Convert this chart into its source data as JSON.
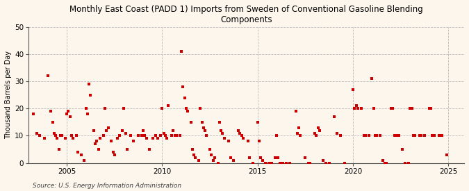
{
  "title": "Monthly East Coast (PADD 1) Imports from Sweden of Conventional Gasoline Blending\nComponents",
  "ylabel": "Thousand Barrels per Day",
  "source": "Source: U.S. Energy Information Administration",
  "background_color": "#fdf6ec",
  "plot_bg_color": "#fdf6ec",
  "marker_color": "#cc0000",
  "grid_color": "#bbbbbb",
  "xlim": [
    2003.0,
    2025.83
  ],
  "ylim": [
    0,
    50
  ],
  "yticks": [
    0,
    10,
    20,
    30,
    40,
    50
  ],
  "xticks": [
    2005,
    2010,
    2015,
    2020,
    2025
  ],
  "data_points": [
    [
      2003.25,
      18
    ],
    [
      2003.42,
      11
    ],
    [
      2003.58,
      10
    ],
    [
      2003.83,
      9
    ],
    [
      2004.0,
      32
    ],
    [
      2004.17,
      19
    ],
    [
      2004.25,
      15
    ],
    [
      2004.33,
      11
    ],
    [
      2004.42,
      10
    ],
    [
      2004.5,
      9
    ],
    [
      2004.58,
      5
    ],
    [
      2004.67,
      10
    ],
    [
      2004.75,
      10
    ],
    [
      2004.92,
      9
    ],
    [
      2005.0,
      18
    ],
    [
      2005.08,
      19
    ],
    [
      2005.17,
      17
    ],
    [
      2005.25,
      10
    ],
    [
      2005.33,
      9
    ],
    [
      2005.5,
      10
    ],
    [
      2005.58,
      4
    ],
    [
      2005.75,
      3
    ],
    [
      2005.92,
      1
    ],
    [
      2006.0,
      20
    ],
    [
      2006.08,
      18
    ],
    [
      2006.17,
      29
    ],
    [
      2006.25,
      25
    ],
    [
      2006.42,
      12
    ],
    [
      2006.5,
      7
    ],
    [
      2006.58,
      8
    ],
    [
      2006.67,
      5
    ],
    [
      2006.75,
      9
    ],
    [
      2006.92,
      10
    ],
    [
      2007.0,
      20
    ],
    [
      2007.08,
      12
    ],
    [
      2007.17,
      13
    ],
    [
      2007.33,
      8
    ],
    [
      2007.42,
      4
    ],
    [
      2007.5,
      3
    ],
    [
      2007.67,
      9
    ],
    [
      2007.75,
      10
    ],
    [
      2007.92,
      12
    ],
    [
      2008.0,
      20
    ],
    [
      2008.08,
      11
    ],
    [
      2008.17,
      5
    ],
    [
      2008.33,
      10
    ],
    [
      2008.5,
      8
    ],
    [
      2008.75,
      10
    ],
    [
      2008.92,
      10
    ],
    [
      2009.0,
      12
    ],
    [
      2009.08,
      10
    ],
    [
      2009.17,
      9
    ],
    [
      2009.33,
      5
    ],
    [
      2009.5,
      9
    ],
    [
      2009.67,
      10
    ],
    [
      2009.75,
      9
    ],
    [
      2009.92,
      10
    ],
    [
      2010.0,
      20
    ],
    [
      2010.08,
      11
    ],
    [
      2010.17,
      10
    ],
    [
      2010.25,
      9
    ],
    [
      2010.33,
      21
    ],
    [
      2010.5,
      10
    ],
    [
      2010.58,
      12
    ],
    [
      2010.67,
      10
    ],
    [
      2010.75,
      10
    ],
    [
      2010.92,
      10
    ],
    [
      2011.0,
      41
    ],
    [
      2011.08,
      28
    ],
    [
      2011.17,
      24
    ],
    [
      2011.25,
      20
    ],
    [
      2011.33,
      19
    ],
    [
      2011.5,
      15
    ],
    [
      2011.58,
      5
    ],
    [
      2011.67,
      3
    ],
    [
      2011.75,
      2
    ],
    [
      2011.92,
      1
    ],
    [
      2012.0,
      20
    ],
    [
      2012.08,
      15
    ],
    [
      2012.17,
      13
    ],
    [
      2012.25,
      12
    ],
    [
      2012.33,
      10
    ],
    [
      2012.5,
      5
    ],
    [
      2012.58,
      3
    ],
    [
      2012.67,
      1
    ],
    [
      2012.75,
      2
    ],
    [
      2012.92,
      0
    ],
    [
      2013.0,
      15
    ],
    [
      2013.08,
      12
    ],
    [
      2013.17,
      11
    ],
    [
      2013.25,
      9
    ],
    [
      2013.5,
      8
    ],
    [
      2013.58,
      2
    ],
    [
      2013.75,
      1
    ],
    [
      2014.0,
      12
    ],
    [
      2014.08,
      11
    ],
    [
      2014.17,
      10
    ],
    [
      2014.25,
      9
    ],
    [
      2014.5,
      8
    ],
    [
      2014.58,
      2
    ],
    [
      2014.75,
      0
    ],
    [
      2015.0,
      15
    ],
    [
      2015.08,
      8
    ],
    [
      2015.17,
      2
    ],
    [
      2015.25,
      1
    ],
    [
      2015.42,
      0
    ],
    [
      2015.58,
      0
    ],
    [
      2015.75,
      0
    ],
    [
      2015.92,
      2
    ],
    [
      2016.0,
      10
    ],
    [
      2016.08,
      2
    ],
    [
      2016.17,
      0
    ],
    [
      2016.25,
      0
    ],
    [
      2016.33,
      0
    ],
    [
      2016.5,
      0
    ],
    [
      2016.67,
      0
    ],
    [
      2017.0,
      19
    ],
    [
      2017.08,
      11
    ],
    [
      2017.17,
      13
    ],
    [
      2017.25,
      10
    ],
    [
      2017.5,
      2
    ],
    [
      2017.67,
      0
    ],
    [
      2017.75,
      0
    ],
    [
      2018.0,
      11
    ],
    [
      2018.08,
      10
    ],
    [
      2018.17,
      13
    ],
    [
      2018.25,
      12
    ],
    [
      2018.42,
      1
    ],
    [
      2018.58,
      0
    ],
    [
      2018.75,
      0
    ],
    [
      2019.0,
      17
    ],
    [
      2019.17,
      11
    ],
    [
      2019.33,
      10
    ],
    [
      2019.58,
      0
    ],
    [
      2020.0,
      27
    ],
    [
      2020.08,
      20
    ],
    [
      2020.17,
      21
    ],
    [
      2020.25,
      20
    ],
    [
      2020.42,
      20
    ],
    [
      2020.58,
      10
    ],
    [
      2020.67,
      10
    ],
    [
      2020.83,
      10
    ],
    [
      2021.0,
      31
    ],
    [
      2021.08,
      20
    ],
    [
      2021.17,
      10
    ],
    [
      2021.25,
      10
    ],
    [
      2021.42,
      10
    ],
    [
      2021.58,
      1
    ],
    [
      2021.67,
      0
    ],
    [
      2021.75,
      0
    ],
    [
      2022.0,
      20
    ],
    [
      2022.08,
      20
    ],
    [
      2022.17,
      10
    ],
    [
      2022.25,
      10
    ],
    [
      2022.42,
      10
    ],
    [
      2022.58,
      5
    ],
    [
      2022.75,
      0
    ],
    [
      2022.92,
      0
    ],
    [
      2023.0,
      20
    ],
    [
      2023.08,
      20
    ],
    [
      2023.17,
      10
    ],
    [
      2023.25,
      10
    ],
    [
      2023.5,
      10
    ],
    [
      2023.58,
      10
    ],
    [
      2023.75,
      10
    ],
    [
      2024.0,
      20
    ],
    [
      2024.08,
      20
    ],
    [
      2024.17,
      10
    ],
    [
      2024.25,
      10
    ],
    [
      2024.5,
      10
    ],
    [
      2024.67,
      10
    ],
    [
      2024.92,
      3
    ]
  ]
}
